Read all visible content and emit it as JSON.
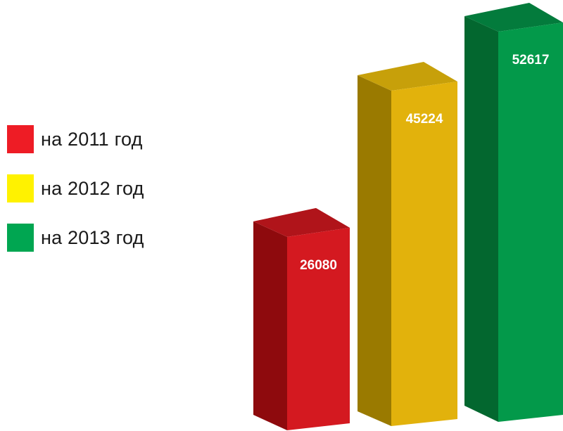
{
  "chart_data": {
    "type": "bar",
    "title": "",
    "xlabel": "",
    "ylabel": "",
    "categories": [
      "на 2011 год",
      "на 2012 год",
      "на 2013 год"
    ],
    "values": [
      26080,
      45224,
      52617
    ],
    "value_labels": [
      "26080",
      "45224",
      "52617"
    ],
    "colors": {
      "front": [
        "#d41920",
        "#e2b20c",
        "#03994a"
      ],
      "side": [
        "#8e0a0d",
        "#9a7a00",
        "#03672f"
      ],
      "top": [
        "#b0141a",
        "#c7a00a",
        "#037b3c"
      ]
    },
    "legend": {
      "position": "left",
      "swatches": [
        "#ee1c25",
        "#fff200",
        "#00a651"
      ]
    },
    "grid": false,
    "three_d": true
  }
}
